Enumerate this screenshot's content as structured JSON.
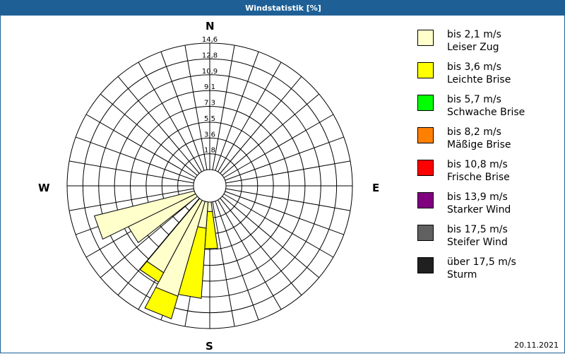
{
  "window": {
    "title": "Windstatistik [%]"
  },
  "compass": {
    "north": "N",
    "south": "S",
    "east": "E",
    "west": "W"
  },
  "footer": {
    "date": "20.11.2021"
  },
  "legend": [
    {
      "range": "bis 2,1 m/s",
      "name": "Leiser Zug",
      "color": "#ffffcc"
    },
    {
      "range": "bis 3,6 m/s",
      "name": "Leichte Brise",
      "color": "#ffff00"
    },
    {
      "range": "bis 5,7 m/s",
      "name": "Schwache Brise",
      "color": "#00ff00"
    },
    {
      "range": "bis 8,2 m/s",
      "name": "Mäßige Brise",
      "color": "#ff8000"
    },
    {
      "range": "bis 10,8 m/s",
      "name": "Frische Brise",
      "color": "#ff0000"
    },
    {
      "range": "bis 13,9 m/s",
      "name": "Starker Wind",
      "color": "#800080"
    },
    {
      "range": "bis 17,5 m/s",
      "name": "Steifer Wind",
      "color": "#606060"
    },
    {
      "range": "über 17,5 m/s",
      "name": "Sturm",
      "color": "#202020"
    }
  ],
  "chart_data": {
    "type": "wind-rose",
    "title": "Windstatistik [%]",
    "unit": "%",
    "radial_ticks": [
      "1,8",
      "3,6",
      "5,5",
      "7,3",
      "9,1",
      "10,9",
      "12,8",
      "14,6"
    ],
    "radial_max": 14.6,
    "sector_width_deg": 12,
    "legend_position": "right",
    "series_names": [
      "bis 2,1 m/s",
      "bis 3,6 m/s",
      "bis 5,7 m/s",
      "bis 8,2 m/s",
      "bis 10,8 m/s",
      "bis 13,9 m/s",
      "bis 17,5 m/s",
      "über 17,5 m/s"
    ],
    "sectors": [
      {
        "direction_deg": 154,
        "values": [
          0.2,
          0,
          0,
          0,
          0,
          0,
          0,
          0
        ]
      },
      {
        "direction_deg": 166,
        "values": [
          0.4,
          0,
          0,
          0,
          0,
          0,
          0,
          0
        ]
      },
      {
        "direction_deg": 178,
        "values": [
          2.5,
          3.8,
          0,
          0,
          0,
          0,
          0,
          0
        ]
      },
      {
        "direction_deg": 190,
        "values": [
          4.2,
          7.2,
          0,
          0,
          0,
          0,
          0,
          0
        ]
      },
      {
        "direction_deg": 202,
        "values": [
          11.6,
          2.4,
          0,
          0,
          0,
          0,
          0,
          0
        ]
      },
      {
        "direction_deg": 214,
        "values": [
          9.9,
          1.1,
          0,
          0,
          0,
          0,
          0,
          0
        ]
      },
      {
        "direction_deg": 226,
        "values": [
          0.5,
          0,
          0,
          0,
          0,
          0,
          0,
          0
        ]
      },
      {
        "direction_deg": 238,
        "values": [
          9.2,
          0,
          0,
          0,
          0,
          0,
          0,
          0
        ]
      },
      {
        "direction_deg": 250,
        "values": [
          12.1,
          0,
          0,
          0,
          0,
          0,
          0,
          0
        ]
      },
      {
        "direction_deg": 262,
        "values": [
          1.0,
          0,
          0,
          0,
          0,
          0,
          0,
          0
        ]
      },
      {
        "direction_deg": 274,
        "values": [
          0.8,
          0,
          0,
          0,
          0,
          0,
          0,
          0
        ]
      },
      {
        "direction_deg": 286,
        "values": [
          0.6,
          0,
          0,
          0,
          0,
          0,
          0,
          0
        ]
      },
      {
        "direction_deg": 298,
        "values": [
          0.5,
          0,
          0,
          0,
          0,
          0,
          0,
          0
        ]
      },
      {
        "direction_deg": 310,
        "values": [
          0.3,
          0,
          0,
          0,
          0,
          0,
          0,
          0
        ]
      }
    ]
  }
}
